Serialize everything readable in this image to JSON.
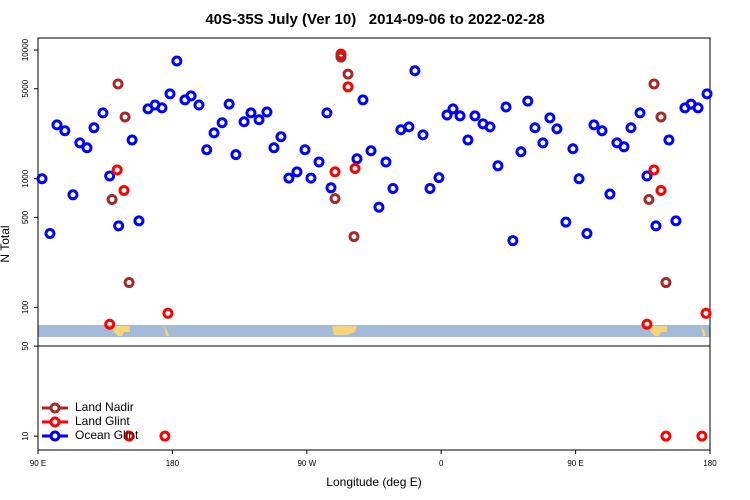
{
  "chart_data": {
    "type": "scatter",
    "title": "40S-35S July (Ver 10)   2014-09-06 to 2022-02-28",
    "xlabel": "Longitude (deg E)",
    "ylabel": "N Total",
    "log_y": true,
    "legend": "lower left",
    "xlim": [
      90,
      540
    ],
    "xticks": [
      {
        "value": 90,
        "label": "90 E"
      },
      {
        "value": 180,
        "label": "180"
      },
      {
        "value": 270,
        "label": "90 W"
      },
      {
        "value": 360,
        "label": "0"
      },
      {
        "value": 450,
        "label": "90 E"
      },
      {
        "value": 540,
        "label": "180"
      }
    ],
    "ylim": [
      7.8,
      12400
    ],
    "yticks": [
      10,
      50,
      100,
      500,
      1000,
      5000,
      10000
    ],
    "series": [
      {
        "name": "Land Nadir",
        "color": "#a52a2a",
        "x": [
          143.6,
          148.3,
          139.6,
          151,
          292.9,
          297.6,
          288.9,
          301.6,
          502.5,
          507.2,
          499.1,
          510.5
        ],
        "values": [
          5450,
          3020,
          690,
          156,
          8800,
          6500,
          700,
          355,
          5450,
          3020,
          690,
          156
        ]
      },
      {
        "name": "Land Glint",
        "color": "#ff0000",
        "x": [
          138,
          143,
          147.6,
          151,
          177,
          175,
          292.9,
          297.6,
          288.9,
          302.3,
          497.8,
          502.5,
          507.2,
          510.5,
          534.6,
          537.3
        ],
        "values": [
          74,
          1170,
          810,
          10,
          90,
          10,
          9300,
          5170,
          1130,
          1200,
          74,
          1170,
          810,
          10,
          10,
          90
        ]
      },
      {
        "name": "Ocean Glint",
        "color": "#0000ff",
        "x": [
          92.7,
          98,
          102.7,
          108,
          113.4,
          118,
          122.8,
          127.5,
          133.5,
          138,
          144,
          153,
          157.6,
          163.7,
          168.4,
          173,
          178.4,
          183,
          188.4,
          192.5,
          197.8,
          203,
          207.9,
          213.3,
          218,
          222.5,
          228,
          232.6,
          238,
          243.3,
          248,
          252.7,
          258,
          263.4,
          268.8,
          272.8,
          278.2,
          283.5,
          286.2,
          303.6,
          307.6,
          313,
          318.3,
          323,
          327.7,
          333,
          338.4,
          342.4,
          347.8,
          352.5,
          358.5,
          363.9,
          367.9,
          372.6,
          377.9,
          382.6,
          388,
          392.7,
          398,
          403.4,
          408,
          413.4,
          418,
          422.8,
          428.1,
          432.8,
          437.5,
          443.5,
          448.2,
          452.3,
          457.6,
          462.3,
          467.7,
          473,
          477.7,
          482.4,
          487.1,
          493.1,
          497.8,
          503.8,
          512.5,
          517.2,
          523.2,
          527.3,
          532,
          538
        ],
        "values": [
          1000,
          375,
          2620,
          2360,
          750,
          1900,
          1740,
          2490,
          3250,
          1050,
          430,
          2000,
          470,
          3490,
          3740,
          3550,
          4560,
          8220,
          4100,
          4400,
          3740,
          1680,
          2270,
          2720,
          3800,
          1540,
          2770,
          3250,
          2870,
          3300,
          1740,
          2120,
          1010,
          1130,
          1680,
          1010,
          1350,
          3250,
          850,
          1430,
          4100,
          1650,
          600,
          1350,
          840,
          2400,
          2530,
          6900,
          2190,
          840,
          1020,
          3130,
          3490,
          3080,
          2000,
          3080,
          2670,
          2530,
          1260,
          3610,
          330,
          1620,
          4010,
          2490,
          1900,
          2970,
          2440,
          460,
          1710,
          1000,
          375,
          2620,
          2360,
          760,
          1900,
          1770,
          2490,
          3250,
          1050,
          430,
          2000,
          470,
          3550,
          3800,
          3550,
          4560
        ]
      }
    ]
  }
}
